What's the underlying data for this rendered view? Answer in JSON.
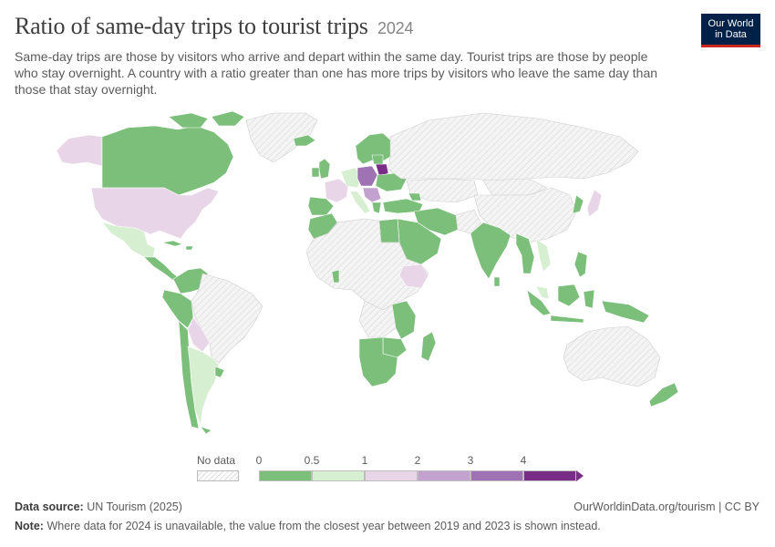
{
  "header": {
    "title": "Ratio of same-day trips to tourist trips",
    "year": "2024",
    "subtitle": "Same-day trips are those by visitors who arrive and depart within the same day. Tourist trips are those by people who stay overnight. A country with a ratio greater than one has more trips by visitors who leave the same day than those that stay overnight."
  },
  "logo": {
    "line1": "Our World",
    "line2": "in Data",
    "bg": "#002147",
    "accent": "#ce261e"
  },
  "legend": {
    "nodata_label": "No data",
    "ticks": [
      "0",
      "0.5",
      "1",
      "2",
      "3",
      "4"
    ],
    "bins": [
      {
        "from": 0,
        "to": 0.5,
        "color": "#7bbf7a"
      },
      {
        "from": 0.5,
        "to": 1,
        "color": "#d6efd0"
      },
      {
        "from": 1,
        "to": 2,
        "color": "#e8d5e8"
      },
      {
        "from": 2,
        "to": 3,
        "color": "#c4a2cf"
      },
      {
        "from": 3,
        "to": 4,
        "color": "#9e72b3"
      },
      {
        "from": 4,
        "to": null,
        "color": "#7a2d86"
      }
    ]
  },
  "map_colors": {
    "nodata": "#f3f3f3",
    "green": "#7bbf7a",
    "lightgreen": "#d6efd0",
    "lightpurple": "#e8d5e8",
    "midpurple": "#c4a2cf",
    "purple": "#9e72b3",
    "darkpurple": "#7a2d86"
  },
  "footer": {
    "source_label": "Data source:",
    "source": "UN Tourism (2025)",
    "url": "OurWorldinData.org/tourism | CC BY",
    "note_label": "Note:",
    "note": "Where data for 2024 is unavailable, the value from the closest year between 2019 and 2023 is shown instead."
  }
}
